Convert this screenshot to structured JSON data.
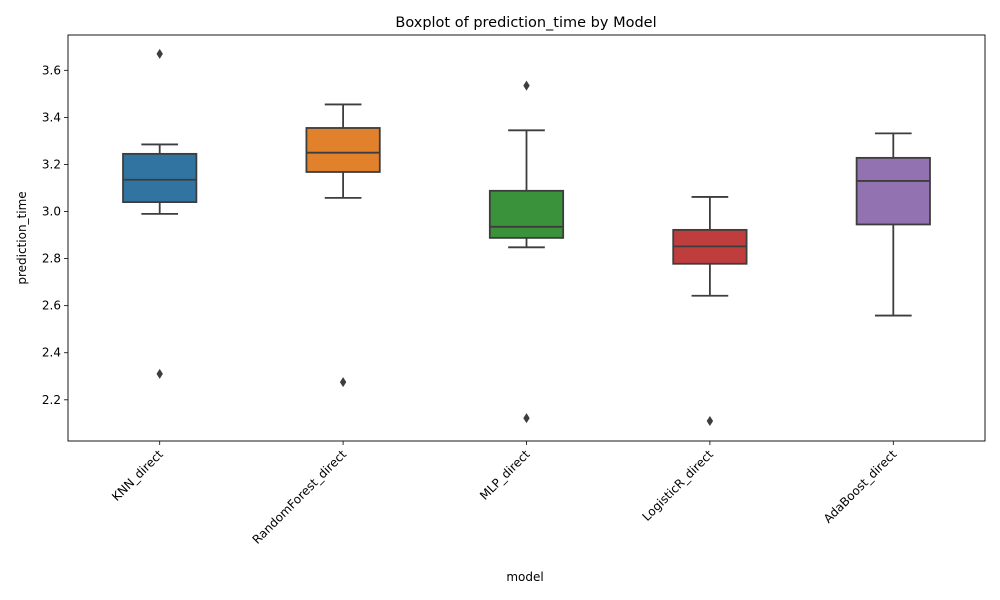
{
  "chart_data": {
    "type": "boxplot",
    "title": "Boxplot of prediction_time by Model",
    "xlabel": "model",
    "ylabel": "prediction_time",
    "ylim": [
      2.025,
      3.75
    ],
    "yticks": [
      2.2,
      2.4,
      2.6,
      2.8,
      3.0,
      3.2,
      3.4,
      3.6
    ],
    "ytick_labels": [
      "2.2",
      "2.4",
      "2.6",
      "2.8",
      "3.0",
      "3.2",
      "3.4",
      "3.6"
    ],
    "grid": false,
    "legend": "none",
    "categories": [
      "KNN_direct",
      "RandomForest_direct",
      "MLP_direct",
      "LogisticR_direct",
      "AdaBoost_direct"
    ],
    "boxes": [
      {
        "name": "KNN_direct",
        "whisker_low": 2.99,
        "q1": 3.04,
        "median": 3.135,
        "q3": 3.245,
        "whisker_high": 3.285,
        "outliers": [
          3.67,
          2.31
        ],
        "color": "#3274a1"
      },
      {
        "name": "RandomForest_direct",
        "whisker_low": 3.058,
        "q1": 3.168,
        "median": 3.25,
        "q3": 3.355,
        "whisker_high": 3.455,
        "outliers": [
          2.275
        ],
        "color": "#e1812c"
      },
      {
        "name": "MLP_direct",
        "whisker_low": 2.848,
        "q1": 2.888,
        "median": 2.935,
        "q3": 3.088,
        "whisker_high": 3.345,
        "outliers": [
          3.535,
          2.122
        ],
        "color": "#3a923a"
      },
      {
        "name": "LogisticR_direct",
        "whisker_low": 2.642,
        "q1": 2.778,
        "median": 2.852,
        "q3": 2.922,
        "whisker_high": 3.062,
        "outliers": [
          2.11
        ],
        "color": "#c03d3e"
      },
      {
        "name": "AdaBoost_direct",
        "whisker_low": 2.558,
        "q1": 2.945,
        "median": 3.13,
        "q3": 3.228,
        "whisker_high": 3.332,
        "outliers": [],
        "color": "#9372b2"
      }
    ]
  }
}
